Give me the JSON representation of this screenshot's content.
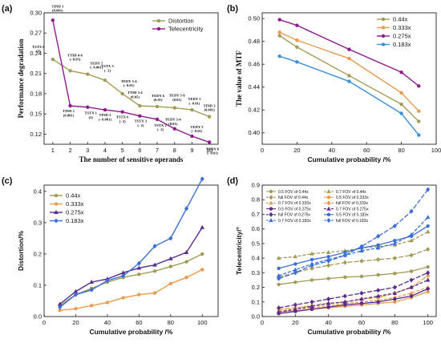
{
  "chart_data": [
    {
      "panel": "(a)",
      "type": "line",
      "x": [
        1,
        2,
        3,
        4,
        5,
        6,
        7,
        8,
        9,
        10
      ],
      "xlabel": "The number of sensitive operands",
      "ylabel": "Performance degradation",
      "xlim": [
        0.5,
        10.5
      ],
      "ylim": [
        0.105,
        0.3
      ],
      "xticks": [
        "1",
        "2",
        "3",
        "4",
        "5",
        "6",
        "7",
        "8",
        "9",
        "10"
      ],
      "yticks": [
        "0.12",
        "0.15",
        "0.18",
        "0.21",
        "0.24",
        "0.27",
        "0.30"
      ],
      "ytick_values": [
        0.12,
        0.15,
        0.18,
        0.21,
        0.24,
        0.27,
        0.3
      ],
      "grid": false,
      "legend": "top-right",
      "series": [
        {
          "name": "Distortion",
          "color": "#a39a55",
          "marker": "circle",
          "values": [
            0.231,
            0.214,
            0.209,
            0.2,
            0.18,
            0.162,
            0.161,
            0.159,
            0.156,
            0.146
          ],
          "labels": [
            "TSTX 6|(2)",
            "TTHI 4-6|(- 0.05)",
            "TEDY 5|(- 0.001)",
            "TSTX 3|(- 2)",
            "TEDY 3-4|(- 0.01)",
            "TTHI 3-4|(0.05)",
            "TEDY 6|(0.01)",
            "TEDY 5-6|(0.01)",
            "TEDY 3|(- 0.01)",
            "TIND 3|(0.001)"
          ]
        },
        {
          "name": "Telecentricity",
          "color": "#8e1b8e",
          "marker": "circle",
          "values": [
            0.289,
            0.162,
            0.16,
            0.156,
            0.153,
            0.147,
            0.142,
            0.128,
            0.117,
            0.108
          ],
          "labels": [
            "TIND 1|(0.001)",
            "TIND 1|(0.001)",
            "TSTX 1|(2)",
            "TIND 3|(- 0.001)",
            "TSTX 6|(- 2)",
            "TSTX 3|(- 2)",
            "TSTX 2|(- 2)",
            "TEDY 3-4|(0.01)",
            "TEDY 3|(- 0.01)",
            "TEDY 6|(- 0.01)"
          ]
        }
      ]
    },
    {
      "panel": "(b)",
      "type": "line",
      "x": [
        10,
        20,
        50,
        80,
        90
      ],
      "xlabel": "Cumulative probability /%",
      "ylabel": "The value of MTF",
      "xlim": [
        0,
        100
      ],
      "ylim": [
        0.39,
        0.505
      ],
      "xticks": [
        "0",
        "20",
        "40",
        "60",
        "80",
        "100"
      ],
      "yticks": [
        "0.40",
        "0.42",
        "0.44",
        "0.46",
        "0.48",
        "0.50"
      ],
      "ytick_values": [
        0.4,
        0.42,
        0.44,
        0.46,
        0.48,
        0.5
      ],
      "grid": false,
      "legend": "top-right",
      "series": [
        {
          "name": "0.44x",
          "color": "#a39a55",
          "values": [
            0.485,
            0.475,
            0.45,
            0.425,
            0.41
          ]
        },
        {
          "name": "0.333x",
          "color": "#e89a4d",
          "values": [
            0.488,
            0.481,
            0.465,
            0.435,
            0.419
          ]
        },
        {
          "name": "0.275x",
          "color": "#8e1b8e",
          "values": [
            0.499,
            0.494,
            0.473,
            0.453,
            0.441
          ]
        },
        {
          "name": "0.183x",
          "color": "#3b8fd6",
          "values": [
            0.467,
            0.462,
            0.445,
            0.417,
            0.398
          ]
        }
      ]
    },
    {
      "panel": "(c)",
      "type": "line",
      "x": [
        10,
        20,
        30,
        40,
        50,
        60,
        70,
        80,
        90,
        100
      ],
      "xlabel": "Cumulative probability /%",
      "ylabel": "Distortion/%",
      "xlim": [
        0,
        110
      ],
      "ylim": [
        0,
        0.42
      ],
      "xticks": [
        "0",
        "20",
        "40",
        "60",
        "80",
        "100"
      ],
      "yticks": [
        "0.0",
        "0.1",
        "0.2",
        "0.3",
        "0.4"
      ],
      "ytick_values": [
        0,
        0.1,
        0.2,
        0.3,
        0.4
      ],
      "grid": false,
      "legend": "top-left",
      "series": [
        {
          "name": "0.44x",
          "color": "#a39a55",
          "marker": "circle",
          "values": [
            0.035,
            0.07,
            0.09,
            0.11,
            0.125,
            0.135,
            0.145,
            0.16,
            0.175,
            0.2
          ]
        },
        {
          "name": "0.333x",
          "color": "#e89a4d",
          "marker": "circle",
          "values": [
            0.02,
            0.025,
            0.035,
            0.045,
            0.06,
            0.07,
            0.075,
            0.105,
            0.125,
            0.15
          ]
        },
        {
          "name": "0.275x",
          "color": "#5a2b8f",
          "marker": "triangle",
          "values": [
            0.04,
            0.08,
            0.11,
            0.12,
            0.14,
            0.155,
            0.165,
            0.185,
            0.205,
            0.285
          ]
        },
        {
          "name": "0.183x",
          "color": "#3b6fd6",
          "marker": "diamond",
          "values": [
            0.03,
            0.07,
            0.085,
            0.115,
            0.13,
            0.17,
            0.225,
            0.25,
            0.345,
            0.44
          ]
        }
      ]
    },
    {
      "panel": "(d)",
      "type": "line",
      "x": [
        10,
        20,
        30,
        40,
        50,
        60,
        70,
        80,
        90,
        100
      ],
      "xlabel": "Cumulative probability /%",
      "ylabel": "Telecentricity/°",
      "xlim": [
        0,
        105
      ],
      "ylim": [
        0,
        0.9
      ],
      "xticks": [
        "0",
        "20",
        "40",
        "60",
        "80",
        "100"
      ],
      "yticks": [
        "0.0",
        "0.1",
        "0.2",
        "0.3",
        "0.4",
        "0.5",
        "0.6",
        "0.7",
        "0.8",
        "0.9"
      ],
      "ytick_values": [
        0,
        0.1,
        0.2,
        0.3,
        0.4,
        0.5,
        0.6,
        0.7,
        0.8,
        0.9
      ],
      "grid": false,
      "legend": "top-left",
      "series": [
        {
          "name": "0.5 FOV of  0.44x",
          "color": "#a39a55",
          "dash": false,
          "values": [
            0.22,
            0.235,
            0.25,
            0.26,
            0.27,
            0.275,
            0.285,
            0.295,
            0.31,
            0.34
          ]
        },
        {
          "name": "0.7 FOV of  0.44x",
          "color": "#a39a55",
          "dash": true,
          "values": [
            0.4,
            0.41,
            0.43,
            0.44,
            0.45,
            0.47,
            0.48,
            0.49,
            0.52,
            0.58
          ]
        },
        {
          "name": "full FOV of  0.44x",
          "color": "#a39a55",
          "dash": true,
          "values": [
            0.27,
            0.3,
            0.33,
            0.35,
            0.37,
            0.38,
            0.39,
            0.4,
            0.42,
            0.46
          ]
        },
        {
          "name": "0.5 FOV of  0.333x",
          "color": "#e89a4d",
          "dash": false,
          "values": [
            0.03,
            0.04,
            0.05,
            0.06,
            0.07,
            0.08,
            0.09,
            0.1,
            0.13,
            0.17
          ]
        },
        {
          "name": "0.7 FOV of  0.333x",
          "color": "#e89a4d",
          "dash": true,
          "values": [
            0.04,
            0.05,
            0.06,
            0.075,
            0.09,
            0.1,
            0.11,
            0.13,
            0.16,
            0.2
          ]
        },
        {
          "name": "full FOV of  0.333x",
          "color": "#e89a4d",
          "dash": true,
          "values": [
            0.05,
            0.06,
            0.075,
            0.09,
            0.1,
            0.12,
            0.13,
            0.16,
            0.2,
            0.28
          ]
        },
        {
          "name": "0.5 FOV of  0.275x",
          "color": "#5a2b8f",
          "dash": false,
          "values": [
            0.02,
            0.035,
            0.05,
            0.065,
            0.08,
            0.09,
            0.1,
            0.12,
            0.14,
            0.19
          ]
        },
        {
          "name": "0.7 FOV of  0.275x",
          "color": "#5a2b8f",
          "dash": true,
          "values": [
            0.03,
            0.05,
            0.07,
            0.09,
            0.1,
            0.12,
            0.14,
            0.16,
            0.2,
            0.25
          ]
        },
        {
          "name": "full FOV of  0.275x",
          "color": "#5a2b8f",
          "dash": true,
          "values": [
            0.06,
            0.08,
            0.1,
            0.12,
            0.14,
            0.16,
            0.18,
            0.2,
            0.25,
            0.3
          ]
        },
        {
          "name": "0.5 FOV of  0.183x",
          "color": "#3b6fd6",
          "dash": false,
          "values": [
            0.33,
            0.36,
            0.39,
            0.41,
            0.44,
            0.47,
            0.49,
            0.52,
            0.55,
            0.62
          ]
        },
        {
          "name": "0.7 FOV of  0.183x",
          "color": "#3b6fd6",
          "dash": true,
          "values": [
            0.28,
            0.32,
            0.36,
            0.39,
            0.42,
            0.45,
            0.47,
            0.5,
            0.56,
            0.68
          ]
        },
        {
          "name": "full FOV of  0.183x",
          "color": "#3b6fd6",
          "dash": true,
          "values": [
            0.26,
            0.3,
            0.35,
            0.38,
            0.42,
            0.48,
            0.55,
            0.62,
            0.72,
            0.87
          ]
        }
      ]
    }
  ]
}
